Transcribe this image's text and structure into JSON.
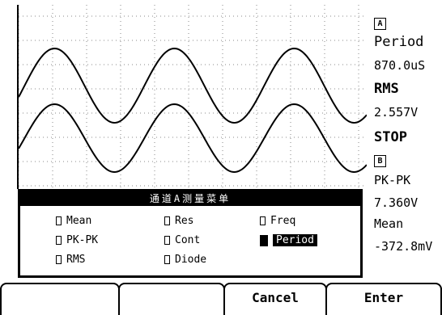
{
  "readout": {
    "channel_a": "A",
    "a_param": "Period",
    "a_value": "870.0uS",
    "a_param2": "RMS",
    "a_value2": "2.557V",
    "status": "STOP",
    "channel_b": "B",
    "b_param": "PK-PK",
    "b_value": "7.360V",
    "b_param2": "Mean",
    "b_value2": "-372.8mV"
  },
  "menu": {
    "title": "通道A测量菜单",
    "options": [
      {
        "label": "Mean",
        "checked": false
      },
      {
        "label": "Res",
        "checked": false
      },
      {
        "label": "Freq",
        "checked": false
      },
      {
        "label": "PK-PK",
        "checked": false
      },
      {
        "label": "Cont",
        "checked": false
      },
      {
        "label": "Period",
        "checked": true
      },
      {
        "label": "RMS",
        "checked": false
      },
      {
        "label": "Diode",
        "checked": false
      }
    ]
  },
  "softkeys": [
    "",
    "",
    "Cancel",
    "Enter"
  ]
}
